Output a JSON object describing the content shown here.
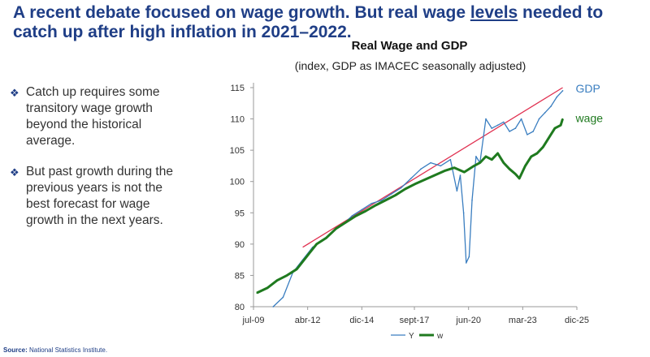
{
  "slide": {
    "title_part1": "A recent debate focused on wage growth. But real wage ",
    "title_underlined": "levels",
    "title_part2": " needed to catch up after high inflation in 2021–2022.",
    "bullets": [
      {
        "icon": "diamond-bullet-icon",
        "text": "Catch up requires some transitory wage growth beyond the historical average."
      },
      {
        "icon": "diamond-bullet-icon",
        "text": "But past growth during the previous years is not the best forecast for wage growth in the next years."
      }
    ],
    "source_label": "Source:",
    "source_text": " National Statistics Institute."
  },
  "chart_data": {
    "type": "line",
    "title": "Real Wage and GDP",
    "subtitle": "(index, GDP as IMACEC seasonally adjusted)",
    "x_ticks": [
      "jul-09",
      "abr-12",
      "dic-14",
      "sept-17",
      "jun-20",
      "mar-23",
      "dic-25"
    ],
    "x_tick_positions": [
      2009.5,
      2012.25,
      2015.0,
      2017.67,
      2020.42,
      2023.17,
      2025.92
    ],
    "xlim": [
      2009.5,
      2025.92
    ],
    "ylim": [
      80,
      115
    ],
    "y_ticks": [
      80,
      85,
      90,
      95,
      100,
      105,
      110,
      115
    ],
    "grid": false,
    "legend_position": "bottom",
    "series": [
      {
        "name": "Y",
        "color": "#3a7ec0",
        "end_label": "GDP",
        "x": [
          2010.5,
          2011.0,
          2011.5,
          2012.0,
          2012.5,
          2013.0,
          2013.5,
          2014.0,
          2014.5,
          2015.0,
          2015.5,
          2016.0,
          2016.5,
          2017.0,
          2017.5,
          2018.0,
          2018.5,
          2019.0,
          2019.5,
          2019.83,
          2020.0,
          2020.17,
          2020.3,
          2020.45,
          2020.6,
          2020.8,
          2021.0,
          2021.3,
          2021.6,
          2021.9,
          2022.2,
          2022.5,
          2022.8,
          2023.1,
          2023.4,
          2023.7,
          2024.0,
          2024.3,
          2024.6,
          2024.9,
          2025.2
        ],
        "values": [
          80.0,
          81.5,
          85.5,
          87.5,
          89.5,
          90.5,
          92.0,
          93.0,
          94.5,
          95.5,
          96.5,
          97.0,
          98.0,
          99.0,
          100.5,
          102.0,
          103.0,
          102.5,
          103.5,
          98.5,
          101.0,
          95.0,
          87.0,
          88.0,
          97.0,
          104.0,
          103.0,
          110.0,
          108.5,
          109.0,
          109.5,
          108.0,
          108.5,
          110.0,
          107.5,
          108.0,
          110.0,
          111.0,
          112.0,
          113.5,
          114.5
        ]
      },
      {
        "name": "w",
        "color": "#1f7a1f",
        "end_label": "wage",
        "x": [
          2009.67,
          2010.2,
          2010.7,
          2011.2,
          2011.7,
          2012.2,
          2012.7,
          2013.2,
          2013.7,
          2014.2,
          2014.7,
          2015.2,
          2015.7,
          2016.2,
          2016.7,
          2017.2,
          2017.7,
          2018.2,
          2018.7,
          2019.2,
          2019.7,
          2020.2,
          2020.7,
          2021.0,
          2021.3,
          2021.6,
          2021.9,
          2022.2,
          2022.5,
          2022.8,
          2023.0,
          2023.3,
          2023.6,
          2023.9,
          2024.2,
          2024.5,
          2024.8,
          2025.1,
          2025.2
        ],
        "values": [
          82.2,
          83.0,
          84.2,
          85.0,
          86.0,
          88.0,
          90.0,
          91.0,
          92.5,
          93.5,
          94.5,
          95.3,
          96.2,
          97.0,
          97.8,
          98.8,
          99.6,
          100.3,
          101.0,
          101.7,
          102.2,
          101.5,
          102.5,
          103.0,
          104.0,
          103.5,
          104.5,
          103.0,
          102.0,
          101.2,
          100.5,
          102.5,
          104.0,
          104.5,
          105.5,
          107.0,
          108.5,
          109.0,
          110.0
        ]
      }
    ],
    "trend_line": {
      "color": "#e03050",
      "from": [
        2012.0,
        89.5
      ],
      "to": [
        2025.2,
        115.0
      ]
    }
  }
}
